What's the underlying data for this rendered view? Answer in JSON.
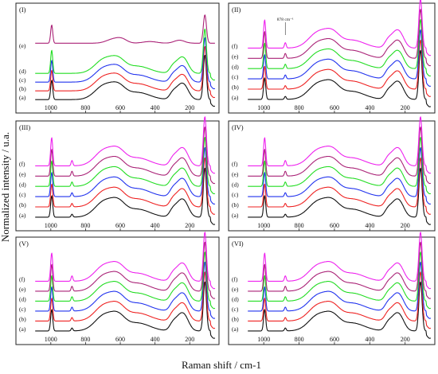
{
  "chart_data": {
    "type": "line",
    "xlabel": "Raman shift / cm-1",
    "ylabel": "Normalized intensity / u.a.",
    "xlim": [
      1100,
      50
    ],
    "x_ticks": [
      1000,
      800,
      600,
      400,
      200
    ],
    "x_tick_labels": [
      "1000",
      "800",
      "600",
      "400",
      "200"
    ],
    "colors": {
      "a": "#111111",
      "b": "#ee2222",
      "c": "#2233ee",
      "d": "#22dd22",
      "e": "#aa2277",
      "f": "#ee22ee"
    },
    "panels": [
      {
        "label": "(I)",
        "curves": [
          "(a)",
          "(b)",
          "(c)",
          "(d)",
          "(e)"
        ],
        "annotation": ""
      },
      {
        "label": "(II)",
        "curves": [
          "(a)",
          "(b)",
          "(c)",
          "(d)",
          "(e)",
          "(f)"
        ],
        "annotation": "878 cm⁻¹"
      },
      {
        "label": "(III)",
        "curves": [
          "(a)",
          "(b)",
          "(c)",
          "(d)",
          "(e)",
          "(f)"
        ],
        "annotation": ""
      },
      {
        "label": "(IV)",
        "curves": [
          "(a)",
          "(b)",
          "(c)",
          "(d)",
          "(e)",
          "(f)"
        ],
        "annotation": ""
      },
      {
        "label": "(V)",
        "curves": [
          "(a)",
          "(b)",
          "(c)",
          "(d)",
          "(e)",
          "(f)"
        ],
        "annotation": ""
      },
      {
        "label": "(VI)",
        "curves": [
          "(a)",
          "(b)",
          "(c)",
          "(d)",
          "(e)",
          "(f)"
        ],
        "annotation": ""
      }
    ]
  }
}
